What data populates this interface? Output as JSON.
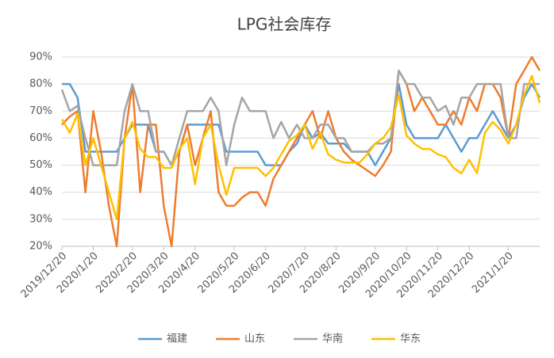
{
  "chart_data": {
    "type": "line",
    "title": "LPG社会库存",
    "categories": [
      "2019/12/20",
      null,
      null,
      null,
      "2020/1/20",
      null,
      null,
      null,
      null,
      "2020/2/20",
      null,
      null,
      null,
      "2020/3/20",
      null,
      null,
      null,
      "2020/4/20",
      null,
      null,
      null,
      null,
      "2020/5/20",
      null,
      null,
      null,
      "2020/6/20",
      null,
      null,
      null,
      null,
      "2020/7/20",
      null,
      null,
      null,
      "2020/8/20",
      null,
      null,
      null,
      null,
      "2020/9/20",
      null,
      null,
      null,
      "2020/10/20",
      null,
      null,
      null,
      "2020/11/20",
      null,
      null,
      null,
      "2020/12/20",
      null,
      null,
      null,
      null,
      "2021/1/20",
      null,
      null,
      null,
      null
    ],
    "series": [
      {
        "name": "福建",
        "color": "#5b9bd5",
        "values": [
          80,
          80,
          75,
          55,
          55,
          55,
          55,
          55,
          60,
          65,
          65,
          65,
          55,
          55,
          50,
          55,
          65,
          65,
          65,
          65,
          65,
          55,
          55,
          55,
          55,
          55,
          50,
          50,
          50,
          55,
          58,
          65,
          60,
          62,
          58,
          58,
          58,
          55,
          55,
          55,
          50,
          55,
          60,
          80,
          65,
          60,
          60,
          60,
          60,
          65,
          60,
          55,
          60,
          60,
          65,
          70,
          65,
          60,
          65,
          75,
          80,
          75
        ]
      },
      {
        "name": "山东",
        "color": "#ed7d31",
        "values": [
          65,
          68,
          70,
          40,
          70,
          55,
          35,
          20,
          60,
          80,
          40,
          65,
          65,
          35,
          20,
          55,
          65,
          50,
          60,
          70,
          40,
          35,
          35,
          38,
          40,
          40,
          35,
          45,
          50,
          55,
          60,
          65,
          70,
          60,
          70,
          60,
          55,
          52,
          50,
          48,
          46,
          50,
          55,
          85,
          80,
          70,
          75,
          70,
          65,
          65,
          70,
          65,
          75,
          70,
          80,
          80,
          75,
          60,
          80,
          85,
          90,
          85
        ]
      },
      {
        "name": "华南",
        "color": "#a5a5a5",
        "values": [
          78,
          70,
          72,
          60,
          50,
          50,
          50,
          50,
          70,
          80,
          70,
          70,
          55,
          55,
          50,
          60,
          70,
          70,
          70,
          75,
          70,
          50,
          65,
          75,
          70,
          70,
          70,
          60,
          66,
          60,
          65,
          60,
          60,
          65,
          65,
          60,
          60,
          55,
          55,
          55,
          58,
          58,
          60,
          85,
          80,
          80,
          75,
          75,
          70,
          72,
          65,
          75,
          75,
          80,
          80,
          80,
          80,
          60,
          60,
          80,
          80,
          80
        ]
      },
      {
        "name": "华东",
        "color": "#ffc000",
        "values": [
          67,
          62,
          69,
          50,
          60,
          50,
          40,
          30,
          60,
          66,
          56,
          53,
          53,
          49,
          49,
          56,
          60,
          43,
          60,
          65,
          50,
          39,
          49,
          49,
          49,
          49,
          46,
          49,
          54,
          59,
          61,
          65,
          56,
          62,
          54,
          52,
          51,
          51,
          51,
          54,
          58,
          60,
          64,
          76,
          61,
          58,
          56,
          56,
          54,
          53,
          49,
          47,
          52,
          47,
          62,
          66,
          63,
          58,
          65,
          76,
          83,
          73
        ]
      }
    ],
    "ylim": [
      20,
      90
    ],
    "yticks": [
      {
        "value": 20,
        "label": "20%"
      },
      {
        "value": 30,
        "label": "30%"
      },
      {
        "value": 40,
        "label": "40%"
      },
      {
        "value": 50,
        "label": "50%"
      },
      {
        "value": 60,
        "label": "60%"
      },
      {
        "value": 70,
        "label": "70%"
      },
      {
        "value": 80,
        "label": "80%"
      },
      {
        "value": 90,
        "label": "90%"
      }
    ],
    "grid": true,
    "legend": "bottom"
  }
}
